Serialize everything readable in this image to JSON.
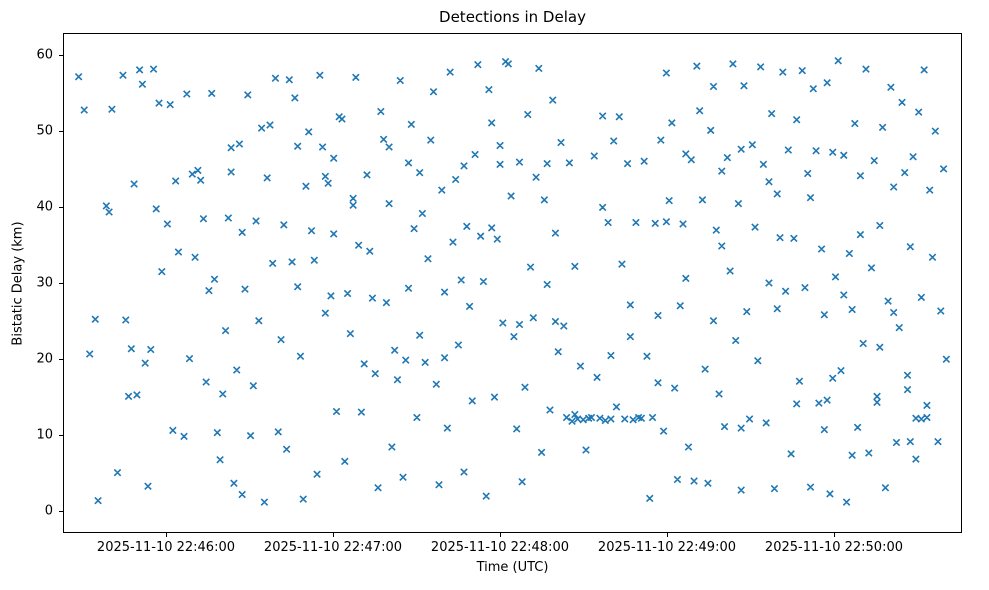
{
  "chart_data": {
    "type": "scatter",
    "title": "Detections in Delay",
    "xlabel": "Time (UTC)",
    "ylabel": "Bistatic Delay (km)",
    "marker": "x",
    "marker_color": "#1f77b4",
    "grid": false,
    "legend": null,
    "x_tick_labels": [
      "2025-11-10 22:46:00",
      "2025-11-10 22:47:00",
      "2025-11-10 22:48:00",
      "2025-11-10 22:49:00",
      "2025-11-10 22:50:00"
    ],
    "x_tick_seconds": [
      0,
      60,
      120,
      180,
      240
    ],
    "xlim_seconds": [
      -37,
      286
    ],
    "y_ticks": [
      0,
      10,
      20,
      30,
      40,
      50,
      60
    ],
    "ylim": [
      -2.95,
      62.95
    ],
    "x_unit": "seconds after 2025-11-10 22:46:00 UTC",
    "y_unit": "km",
    "points": [
      [
        -32,
        57.3
      ],
      [
        -30,
        52.9
      ],
      [
        -28,
        20.6
      ],
      [
        -25,
        1.2
      ],
      [
        -22,
        40.2
      ],
      [
        -21,
        39.4
      ],
      [
        -18,
        4.9
      ],
      [
        -15,
        25.1
      ],
      [
        -14,
        15.0
      ],
      [
        -12,
        43.1
      ],
      [
        -10,
        58.2
      ],
      [
        -9,
        56.3
      ],
      [
        -8,
        19.4
      ],
      [
        -7,
        3.1
      ],
      [
        -6,
        21.2
      ],
      [
        -5,
        58.3
      ],
      [
        -3,
        53.8
      ],
      [
        -2,
        31.5
      ],
      [
        0,
        37.8
      ],
      [
        2,
        10.5
      ],
      [
        4,
        34.1
      ],
      [
        6,
        9.7
      ],
      [
        8,
        20.0
      ],
      [
        10,
        33.4
      ],
      [
        12,
        43.6
      ],
      [
        14,
        16.9
      ],
      [
        16,
        55.1
      ],
      [
        17,
        30.5
      ],
      [
        18,
        10.2
      ],
      [
        19,
        6.6
      ],
      [
        20,
        15.3
      ],
      [
        21,
        23.7
      ],
      [
        22,
        38.6
      ],
      [
        23,
        44.7
      ],
      [
        24,
        3.5
      ],
      [
        25,
        18.5
      ],
      [
        26,
        48.4
      ],
      [
        27,
        2.0
      ],
      [
        28,
        29.2
      ],
      [
        29,
        54.9
      ],
      [
        30,
        9.8
      ],
      [
        31,
        16.4
      ],
      [
        32,
        38.2
      ],
      [
        33,
        25.0
      ],
      [
        34,
        50.5
      ],
      [
        35,
        1.0
      ],
      [
        36,
        43.9
      ],
      [
        38,
        32.6
      ],
      [
        39,
        57.1
      ],
      [
        40,
        10.3
      ],
      [
        41,
        22.5
      ],
      [
        42,
        37.7
      ],
      [
        43,
        8.0
      ],
      [
        44,
        56.9
      ],
      [
        45,
        32.8
      ],
      [
        46,
        54.5
      ],
      [
        47,
        29.5
      ],
      [
        48,
        20.3
      ],
      [
        49,
        1.4
      ],
      [
        50,
        42.8
      ],
      [
        51,
        50.0
      ],
      [
        52,
        36.9
      ],
      [
        53,
        33.0
      ],
      [
        54,
        4.7
      ],
      [
        55,
        57.5
      ],
      [
        56,
        48.0
      ],
      [
        57,
        26.0
      ],
      [
        58,
        43.2
      ],
      [
        59,
        28.3
      ],
      [
        60,
        46.5
      ],
      [
        61,
        13.0
      ],
      [
        62,
        52.0
      ],
      [
        63,
        51.7
      ],
      [
        64,
        6.4
      ],
      [
        65,
        28.6
      ],
      [
        66,
        23.3
      ],
      [
        67,
        40.3
      ],
      [
        68,
        57.2
      ],
      [
        70,
        12.9
      ],
      [
        71,
        19.3
      ],
      [
        72,
        44.3
      ],
      [
        73,
        34.2
      ],
      [
        74,
        28.0
      ],
      [
        75,
        18.0
      ],
      [
        76,
        2.9
      ],
      [
        77,
        52.7
      ],
      [
        78,
        49.0
      ],
      [
        79,
        27.4
      ],
      [
        80,
        40.5
      ],
      [
        81,
        8.3
      ],
      [
        82,
        21.1
      ],
      [
        83,
        17.2
      ],
      [
        84,
        56.8
      ],
      [
        85,
        4.3
      ],
      [
        86,
        19.8
      ],
      [
        87,
        29.3
      ],
      [
        88,
        51.0
      ],
      [
        89,
        37.2
      ],
      [
        90,
        12.2
      ],
      [
        91,
        44.6
      ],
      [
        92,
        39.2
      ],
      [
        93,
        19.5
      ],
      [
        94,
        33.2
      ],
      [
        95,
        48.9
      ],
      [
        96,
        55.3
      ],
      [
        97,
        16.6
      ],
      [
        98,
        3.3
      ],
      [
        99,
        42.3
      ],
      [
        100,
        28.8
      ],
      [
        101,
        10.8
      ],
      [
        102,
        57.9
      ],
      [
        103,
        35.4
      ],
      [
        104,
        43.7
      ],
      [
        105,
        21.8
      ],
      [
        106,
        30.4
      ],
      [
        107,
        5.0
      ],
      [
        108,
        37.5
      ],
      [
        109,
        26.9
      ],
      [
        110,
        14.4
      ],
      [
        111,
        47.0
      ],
      [
        112,
        58.9
      ],
      [
        113,
        36.2
      ],
      [
        114,
        30.2
      ],
      [
        115,
        1.8
      ],
      [
        116,
        55.6
      ],
      [
        117,
        51.2
      ],
      [
        118,
        14.9
      ],
      [
        119,
        35.8
      ],
      [
        120,
        48.2
      ],
      [
        121,
        24.7
      ],
      [
        122,
        59.3
      ],
      [
        123,
        59.0
      ],
      [
        124,
        41.5
      ],
      [
        125,
        22.9
      ],
      [
        126,
        10.7
      ],
      [
        127,
        46.0
      ],
      [
        128,
        3.7
      ],
      [
        129,
        16.2
      ],
      [
        130,
        52.3
      ],
      [
        131,
        32.1
      ],
      [
        132,
        25.4
      ],
      [
        133,
        44.0
      ],
      [
        134,
        58.4
      ],
      [
        135,
        7.6
      ],
      [
        136,
        41.0
      ],
      [
        137,
        29.8
      ],
      [
        138,
        13.2
      ],
      [
        139,
        54.2
      ],
      [
        140,
        36.6
      ],
      [
        141,
        20.9
      ],
      [
        142,
        48.6
      ],
      [
        143,
        24.3
      ],
      [
        144,
        12.2
      ],
      [
        145,
        45.9
      ],
      [
        146,
        11.7
      ],
      [
        147,
        12.6
      ],
      [
        148,
        12.0
      ],
      [
        149,
        19.0
      ],
      [
        150,
        11.9
      ],
      [
        151,
        7.9
      ],
      [
        152,
        12.1
      ],
      [
        153,
        12.2
      ],
      [
        154,
        46.8
      ],
      [
        155,
        17.5
      ],
      [
        156,
        12.1
      ],
      [
        157,
        52.1
      ],
      [
        158,
        11.8
      ],
      [
        159,
        38.0
      ],
      [
        160,
        12.0
      ],
      [
        161,
        48.8
      ],
      [
        162,
        13.6
      ],
      [
        163,
        52.0
      ],
      [
        164,
        32.5
      ],
      [
        165,
        12.0
      ],
      [
        166,
        45.8
      ],
      [
        167,
        22.9
      ],
      [
        168,
        11.9
      ],
      [
        169,
        38.0
      ],
      [
        170,
        12.2
      ],
      [
        171,
        12.1
      ],
      [
        172,
        46.1
      ],
      [
        173,
        20.3
      ],
      [
        174,
        1.5
      ],
      [
        175,
        12.2
      ],
      [
        176,
        37.9
      ],
      [
        177,
        25.7
      ],
      [
        178,
        48.9
      ],
      [
        179,
        10.4
      ],
      [
        180,
        57.8
      ],
      [
        181,
        40.9
      ],
      [
        182,
        51.2
      ],
      [
        183,
        16.1
      ],
      [
        184,
        4.0
      ],
      [
        185,
        27.0
      ],
      [
        186,
        37.8
      ],
      [
        187,
        30.6
      ],
      [
        188,
        8.3
      ],
      [
        189,
        46.3
      ],
      [
        190,
        3.8
      ],
      [
        191,
        58.7
      ],
      [
        192,
        52.8
      ],
      [
        193,
        41.0
      ],
      [
        194,
        18.6
      ],
      [
        195,
        3.5
      ],
      [
        196,
        50.2
      ],
      [
        197,
        25.0
      ],
      [
        198,
        37.0
      ],
      [
        199,
        15.3
      ],
      [
        200,
        44.8
      ],
      [
        201,
        11.0
      ],
      [
        202,
        46.6
      ],
      [
        203,
        31.6
      ],
      [
        204,
        59.0
      ],
      [
        205,
        22.4
      ],
      [
        206,
        40.5
      ],
      [
        207,
        2.6
      ],
      [
        208,
        56.1
      ],
      [
        209,
        26.2
      ],
      [
        210,
        12.0
      ],
      [
        211,
        48.3
      ],
      [
        212,
        37.4
      ],
      [
        213,
        19.7
      ],
      [
        214,
        58.6
      ],
      [
        215,
        45.7
      ],
      [
        216,
        11.5
      ],
      [
        217,
        30.0
      ],
      [
        218,
        52.4
      ],
      [
        219,
        2.8
      ],
      [
        220,
        41.8
      ],
      [
        221,
        36.0
      ],
      [
        222,
        57.9
      ],
      [
        223,
        28.9
      ],
      [
        224,
        47.6
      ],
      [
        225,
        7.4
      ],
      [
        226,
        35.9
      ],
      [
        227,
        51.6
      ],
      [
        228,
        17.0
      ],
      [
        229,
        58.1
      ],
      [
        230,
        29.4
      ],
      [
        231,
        44.5
      ],
      [
        232,
        3.0
      ],
      [
        233,
        55.7
      ],
      [
        234,
        47.5
      ],
      [
        235,
        14.1
      ],
      [
        236,
        34.5
      ],
      [
        237,
        25.8
      ],
      [
        238,
        56.5
      ],
      [
        239,
        2.1
      ],
      [
        240,
        47.3
      ],
      [
        241,
        30.8
      ],
      [
        242,
        59.4
      ],
      [
        243,
        18.4
      ],
      [
        244,
        46.9
      ],
      [
        245,
        1.0
      ],
      [
        246,
        33.9
      ],
      [
        247,
        26.5
      ],
      [
        248,
        51.1
      ],
      [
        249,
        10.9
      ],
      [
        250,
        44.2
      ],
      [
        251,
        22.0
      ],
      [
        252,
        58.3
      ],
      [
        253,
        7.5
      ],
      [
        254,
        32.0
      ],
      [
        255,
        46.2
      ],
      [
        256,
        14.2
      ],
      [
        257,
        37.6
      ],
      [
        258,
        50.6
      ],
      [
        259,
        2.9
      ],
      [
        260,
        27.6
      ],
      [
        261,
        55.9
      ],
      [
        262,
        42.7
      ],
      [
        263,
        8.9
      ],
      [
        264,
        24.1
      ],
      [
        265,
        53.9
      ],
      [
        266,
        44.6
      ],
      [
        267,
        17.8
      ],
      [
        268,
        34.8
      ],
      [
        269,
        46.7
      ],
      [
        270,
        6.7
      ],
      [
        271,
        52.6
      ],
      [
        272,
        28.1
      ],
      [
        273,
        58.2
      ],
      [
        274,
        13.8
      ],
      [
        275,
        42.3
      ],
      [
        276,
        33.4
      ],
      [
        277,
        50.1
      ],
      [
        278,
        9.0
      ],
      [
        279,
        26.3
      ],
      [
        280,
        45.1
      ],
      [
        281,
        19.9
      ],
      [
        -20,
        53.0
      ],
      [
        -16,
        57.5
      ],
      [
        -11,
        15.2
      ],
      [
        -4,
        39.8
      ],
      [
        3,
        43.5
      ],
      [
        7,
        55.0
      ],
      [
        11,
        44.9
      ],
      [
        13,
        38.5
      ],
      [
        15,
        29.0
      ],
      [
        23,
        47.9
      ],
      [
        37,
        50.9
      ],
      [
        57,
        44.1
      ],
      [
        69,
        35.0
      ],
      [
        91,
        23.1
      ],
      [
        107,
        45.5
      ],
      [
        127,
        24.5
      ],
      [
        137,
        45.8
      ],
      [
        147,
        32.2
      ],
      [
        157,
        40.0
      ],
      [
        167,
        27.1
      ],
      [
        177,
        16.8
      ],
      [
        187,
        47.1
      ],
      [
        197,
        56.0
      ],
      [
        207,
        47.7
      ],
      [
        217,
        43.4
      ],
      [
        227,
        14.0
      ],
      [
        237,
        10.6
      ],
      [
        247,
        7.2
      ],
      [
        257,
        21.5
      ],
      [
        267,
        15.9
      ],
      [
        -26,
        25.2
      ],
      [
        -13,
        21.3
      ],
      [
        1,
        53.6
      ],
      [
        9,
        44.4
      ],
      [
        27,
        36.7
      ],
      [
        47,
        48.1
      ],
      [
        67,
        41.2
      ],
      [
        87,
        45.9
      ],
      [
        117,
        37.3
      ],
      [
        207,
        10.8
      ],
      [
        270,
        12.1
      ],
      [
        272,
        12.0
      ],
      [
        274,
        12.2
      ],
      [
        268,
        9.0
      ],
      [
        262,
        26.1
      ],
      [
        256,
        15.0
      ],
      [
        250,
        36.4
      ],
      [
        244,
        28.4
      ],
      [
        238,
        14.5
      ],
      [
        232,
        41.3
      ],
      [
        60,
        36.5
      ],
      [
        80,
        48.0
      ],
      [
        100,
        20.1
      ],
      [
        120,
        45.7
      ],
      [
        140,
        24.9
      ],
      [
        160,
        20.4
      ],
      [
        180,
        38.1
      ],
      [
        200,
        34.9
      ],
      [
        220,
        26.6
      ],
      [
        240,
        17.4
      ]
    ]
  }
}
